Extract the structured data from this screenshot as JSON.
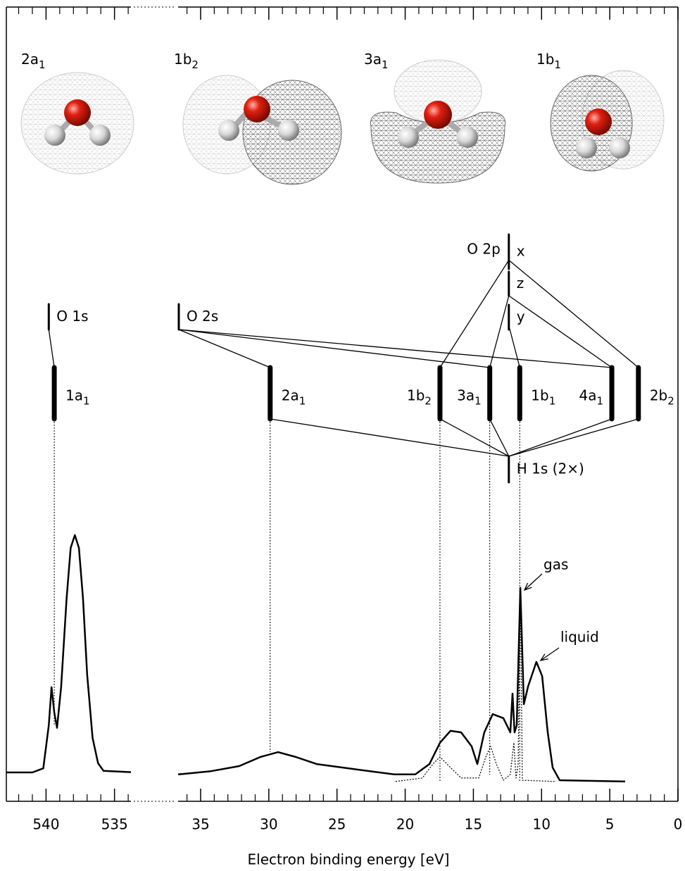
{
  "chart_data": {
    "type": "line",
    "xlabel": "Electron binding energy [eV]",
    "ylim": [
      0,
      100
    ],
    "panels": [
      {
        "xlim": [
          542.9,
          533.8
        ],
        "xticks": [
          540,
          535
        ],
        "xminorticks": [
          542,
          541,
          539,
          538,
          537,
          536,
          534
        ],
        "series": [
          {
            "color": "#000000",
            "style": "solid",
            "x": [
              542.9,
              541,
              540.2,
              539.8,
              539.6,
              539.4,
              539.2,
              538.9,
              538.5,
              538.2,
              537.9,
              537.6,
              537.3,
              537.0,
              536.6,
              536.2,
              535.8,
              533.8
            ],
            "values": [
              6.4,
              6.4,
              8,
              25,
              40,
              30,
              24,
              40,
              75,
              95,
              100,
              95,
              75,
              45,
              20,
              10,
              7,
              6.5
            ]
          }
        ]
      },
      {
        "xlim": [
          36.65,
          0
        ],
        "xticks": [
          35,
          30,
          25,
          20,
          15,
          10,
          5,
          0
        ],
        "xminorticks": [
          36,
          34,
          33,
          32,
          31,
          29,
          28,
          27,
          26,
          24,
          23,
          22,
          21,
          19,
          18,
          17,
          16,
          14,
          13,
          12,
          11,
          9,
          8,
          7,
          6,
          4,
          3,
          2,
          1
        ],
        "series": [
          {
            "color": "#000000",
            "style": "solid",
            "x": [
              36.65,
              34.23,
              32.17,
              30.61,
              29.32,
              28.03,
              26.49,
              23.9,
              20.81,
              19.26,
              18.22,
              17.45,
              16.68,
              15.9,
              15.13,
              14.71,
              14.2,
              13.58,
              12.8,
              12.29,
              12.13,
              11.98,
              11.82,
              11.56,
              11.3,
              10.99,
              10.38,
              9.96,
              9.55,
              9.19,
              8.67,
              3.87
            ],
            "values": [
              5.6,
              6.9,
              8.9,
              12.5,
              14.4,
              12.5,
              9.7,
              7.8,
              5.6,
              5.6,
              9.7,
              18.1,
              22.8,
              22.2,
              16.7,
              9.7,
              22.2,
              29.4,
              27.8,
              22.2,
              37.5,
              22.2,
              25,
              79.2,
              33.3,
              40.3,
              50,
              44.4,
              22.2,
              8.3,
              3.3,
              2.8
            ]
          },
          {
            "color": "#000000",
            "style": "dotted",
            "x": [
              20.7,
              18.74,
              17.97,
              17.45,
              16.68,
              15.9,
              14.61,
              14.09,
              13.73,
              13.32,
              12.8,
              12.29,
              12.03,
              11.87,
              11.72,
              11.56,
              11.41,
              8.93
            ],
            "values": [
              2.8,
              4.2,
              9.7,
              12.5,
              8.3,
              4.2,
              4.2,
              12.5,
              16.7,
              9.7,
              3.3,
              5.6,
              18.1,
              4.2,
              9.7,
              79.2,
              3.3,
              2.8
            ]
          }
        ]
      }
    ],
    "annotations": [
      "gas",
      "liquid"
    ],
    "orbital_images": [
      {
        "label": "2a",
        "sub": "1"
      },
      {
        "label": "1b",
        "sub": "2"
      },
      {
        "label": "3a",
        "sub": "1"
      },
      {
        "label": "1b",
        "sub": "1"
      }
    ],
    "levels": [
      {
        "label": "O 1s",
        "panel": 0,
        "energy": 539.8
      },
      {
        "label": "1a",
        "sub": "1",
        "panel": 0,
        "energy": 539.4
      },
      {
        "label": "O 2s",
        "panel": 1,
        "energy": 36.6
      },
      {
        "label": "2a",
        "sub": "1",
        "panel": 1,
        "energy": 29.9
      },
      {
        "label": "1b",
        "sub": "2",
        "panel": 1,
        "energy": 17.45
      },
      {
        "label": "3a",
        "sub": "1",
        "panel": 1,
        "energy": 13.8
      },
      {
        "label": "1b",
        "sub": "1",
        "panel": 1,
        "energy": 11.6
      },
      {
        "label": "4a",
        "sub": "1",
        "panel": 1,
        "energy": 4.85
      },
      {
        "label": "2b",
        "sub": "2",
        "panel": 1,
        "energy": 2.9
      },
      {
        "label": "x",
        "panel": 1,
        "energy": 12.4
      },
      {
        "label": "z",
        "panel": 1,
        "energy": 12.4
      },
      {
        "label": "y",
        "panel": 1,
        "energy": 12.4
      },
      {
        "label": "H 1s (2×)",
        "panel": 1,
        "energy": 12.4
      }
    ],
    "o2p_label": "O 2p"
  }
}
